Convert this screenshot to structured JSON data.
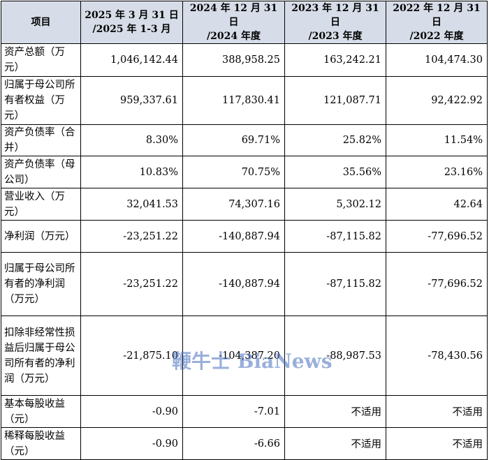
{
  "table": {
    "headers": [
      {
        "line1": "项目",
        "line2": ""
      },
      {
        "line1": "2025 年 3 月 31 日",
        "line2": "/2025 年 1-3 月"
      },
      {
        "line1": "2024 年 12 月 31 日",
        "line2": "/2024 年度"
      },
      {
        "line1": "2023 年 12 月 31 日",
        "line2": "/2023 年度"
      },
      {
        "line1": "2022 年 12 月 31 日",
        "line2": "/2022 年度"
      }
    ],
    "rows": [
      {
        "label": "资产总额（万元）",
        "values": [
          "1,046,142.44",
          "388,958.25",
          "163,242.21",
          "104,474.30"
        ]
      },
      {
        "label": "归属于母公司所有者权益（万元）",
        "values": [
          "959,337.61",
          "117,830.41",
          "121,087.71",
          "92,422.92"
        ]
      },
      {
        "label": "资产负债率（合并）",
        "values": [
          "8.30%",
          "69.71%",
          "25.82%",
          "11.54%"
        ]
      },
      {
        "label": "资产负债率（母公司）",
        "values": [
          "10.83%",
          "70.75%",
          "35.56%",
          "23.16%"
        ]
      },
      {
        "label": "营业收入（万元）",
        "values": [
          "32,041.53",
          "74,307.16",
          "5,302.12",
          "42.64"
        ]
      },
      {
        "label": "净利润（万元）",
        "values": [
          "-23,251.22",
          "-140,887.94",
          "-87,115.82",
          "-77,696.52"
        ]
      },
      {
        "label": "归属于母公司所有者的净利润（万元）",
        "values": [
          "-23,251.22",
          "-140,887.94",
          "-87,115.82",
          "-77,696.52"
        ]
      },
      {
        "label": "扣除非经常性损益后归属于母公司所有者的净利润（万元）",
        "values": [
          "-21,875.10",
          "-104,387.20",
          "-88,987.53",
          "-78,430.56"
        ]
      },
      {
        "label": "基本每股收益（元）",
        "values": [
          "-0.90",
          "-7.01",
          "不适用",
          "不适用"
        ]
      },
      {
        "label": "稀释每股收益（元）",
        "values": [
          "-0.90",
          "-6.66",
          "不适用",
          "不适用"
        ]
      }
    ]
  },
  "watermark": "鞭牛士 BiaNews"
}
